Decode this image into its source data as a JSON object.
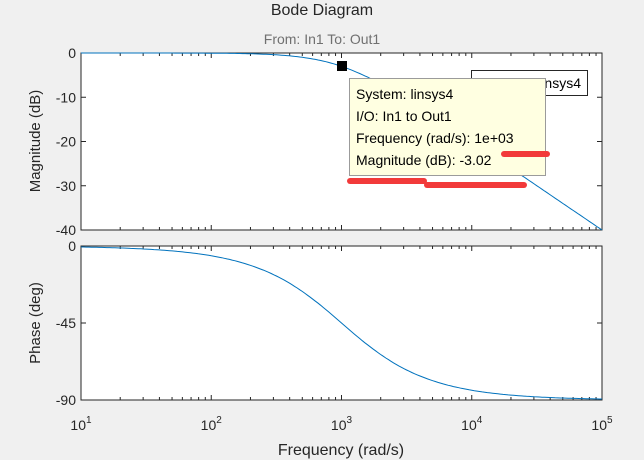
{
  "figure": {
    "title": "Bode Diagram",
    "subtitle": "From: In1  To: Out1"
  },
  "legend": {
    "label": "linsys4"
  },
  "datatip": {
    "system": "System: linsys4",
    "io": "I/O: In1 to Out1",
    "frequency": "Frequency (rad/s): 1e+03",
    "magnitude": "Magnitude (dB): -3.02"
  },
  "colors": {
    "line": "#0072bd",
    "annotation": "#f23a3a",
    "datatip_bg": "#ffffe1"
  },
  "chart_data": [
    {
      "type": "line",
      "title": "Magnitude",
      "ylabel": "Magnitude (dB)",
      "xscale": "log",
      "xlim": [
        10,
        100000
      ],
      "ylim": [
        -40,
        0
      ],
      "yticks": [
        "0",
        "-10",
        "-20",
        "-30",
        "-40"
      ],
      "grid": false,
      "series": [
        {
          "name": "linsys4",
          "x": [
            10,
            100,
            300,
            1000,
            3000,
            10000,
            100000
          ],
          "y": [
            0,
            -0.04,
            -0.37,
            -3.02,
            -10.0,
            -20.0,
            -40.0
          ]
        }
      ]
    },
    {
      "type": "line",
      "title": "Phase",
      "ylabel": "Phase (deg)",
      "xlabel": "Frequency  (rad/s)",
      "xscale": "log",
      "xlim": [
        10,
        100000
      ],
      "ylim": [
        -90,
        0
      ],
      "yticks": [
        "0",
        "-45",
        "-90"
      ],
      "xticks": [
        "10",
        "10",
        "10",
        "10",
        "10"
      ],
      "xtick_exponents": [
        "1",
        "2",
        "3",
        "4",
        "5"
      ],
      "grid": false,
      "series": [
        {
          "name": "linsys4",
          "x": [
            10,
            100,
            1000,
            10000,
            100000
          ],
          "y": [
            -0.6,
            -5.7,
            -45,
            -84.3,
            -89.4
          ]
        }
      ]
    }
  ]
}
